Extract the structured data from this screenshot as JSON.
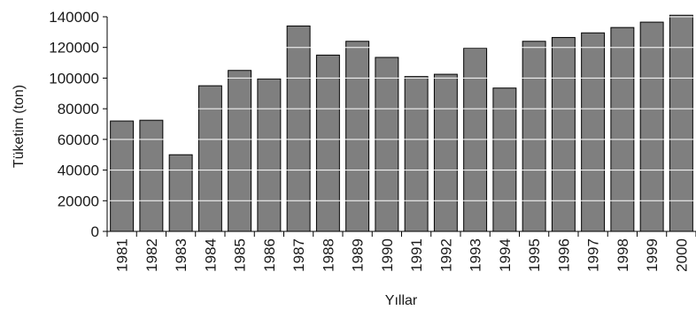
{
  "chart_data": {
    "type": "bar",
    "title": "",
    "xlabel": "Yıllar",
    "ylabel": "Tüketim (ton)",
    "categories": [
      "1981",
      "1982",
      "1983",
      "1984",
      "1985",
      "1986",
      "1987",
      "1988",
      "1989",
      "1990",
      "1991",
      "1992",
      "1993",
      "1994",
      "1995",
      "1996",
      "1997",
      "1998",
      "1999",
      "2000"
    ],
    "values": [
      72000,
      72500,
      50000,
      95000,
      105000,
      99500,
      134000,
      115000,
      124000,
      113500,
      101000,
      102500,
      119500,
      93500,
      124000,
      126500,
      129500,
      133000,
      136500,
      141000
    ],
    "ylim": [
      0,
      140000
    ],
    "yticks": [
      "0",
      "20000",
      "40000",
      "60000",
      "80000",
      "100000",
      "120000",
      "140000"
    ],
    "grid": true,
    "legend": "none",
    "colors": {
      "bar_fill": "#7f7f7f",
      "bar_stroke": "#000000",
      "gridline": "#ffffff",
      "axis": "#000000"
    }
  }
}
